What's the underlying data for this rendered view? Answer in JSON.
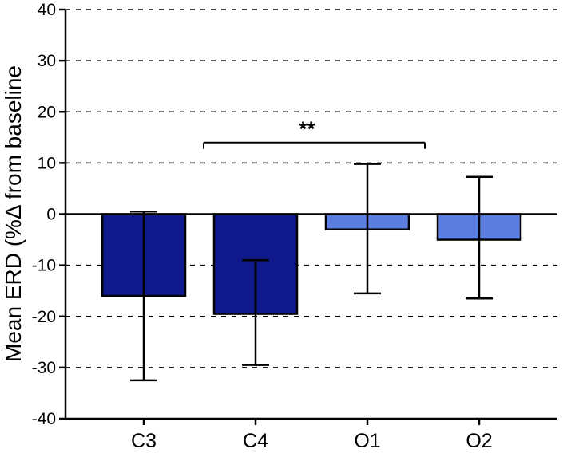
{
  "chart_data": {
    "type": "bar",
    "title": "",
    "xlabel": "",
    "ylabel": "Mean ERD (%Δ from baseline",
    "ylim": [
      -40,
      40
    ],
    "yticks": [
      40,
      30,
      20,
      10,
      0,
      -10,
      -20,
      -30,
      -40
    ],
    "ytick_labels": [
      "40",
      "30",
      "20",
      "10",
      "0",
      "-10",
      "-20",
      "-30",
      "-40"
    ],
    "grid": "horizontal dashed",
    "categories": [
      "C3",
      "C4",
      "O1",
      "O2"
    ],
    "values": [
      -16,
      -19.5,
      -3,
      -5
    ],
    "error_upper": [
      0.5,
      -9,
      9.8,
      7.3
    ],
    "error_lower": [
      -32.5,
      -29.5,
      -15.5,
      -16.5
    ],
    "bar_colors": [
      "#101a8c",
      "#101a8c",
      "#5b7ee0",
      "#5b7ee0"
    ],
    "annotations": [
      {
        "text": "**",
        "from_category": "C4",
        "to_category": "O1",
        "y": 14
      }
    ]
  }
}
